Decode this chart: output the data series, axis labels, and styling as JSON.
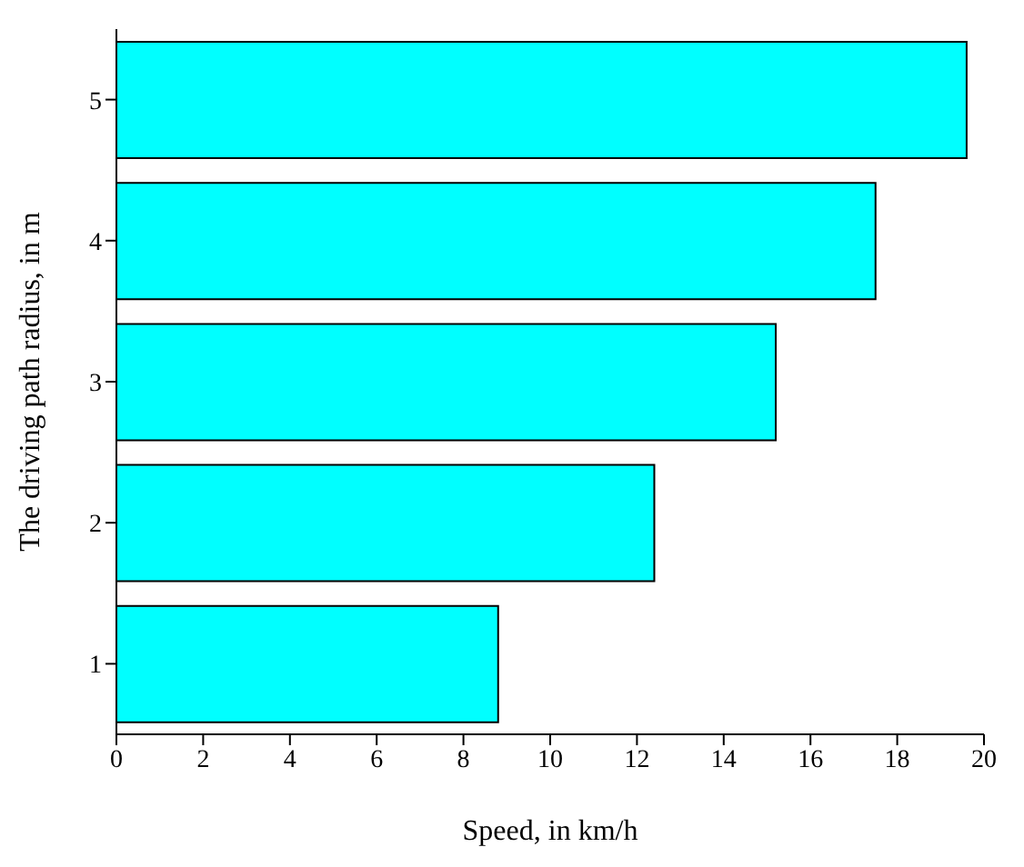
{
  "chart_data": {
    "type": "bar",
    "orientation": "horizontal",
    "xlabel": "Speed, in km/h",
    "ylabel": "The driving path radius, in m",
    "categories": [
      "5",
      "4",
      "3",
      "2",
      "1"
    ],
    "values": [
      19.6,
      17.5,
      15.2,
      12.4,
      8.8
    ],
    "color": "#00ffff",
    "xlim": [
      0,
      20
    ],
    "xticks": [
      0,
      2,
      4,
      6,
      8,
      10,
      12,
      14,
      16,
      18,
      20
    ],
    "grid": false,
    "legend": false
  }
}
